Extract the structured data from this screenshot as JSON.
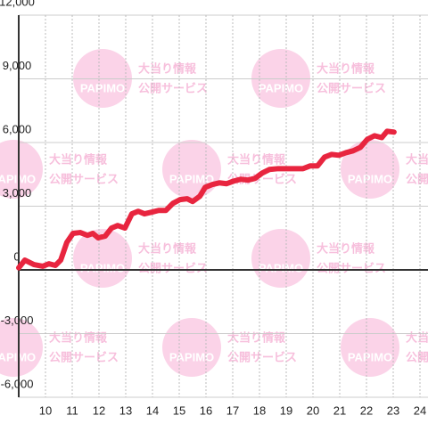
{
  "chart_data": {
    "type": "line",
    "x": [
      9.0,
      9.23,
      9.57,
      9.9,
      10.13,
      10.37,
      10.57,
      10.8,
      11.03,
      11.3,
      11.57,
      11.77,
      11.97,
      12.23,
      12.47,
      12.7,
      12.97,
      13.23,
      13.47,
      13.7,
      13.97,
      14.23,
      14.5,
      14.77,
      15.03,
      15.3,
      15.5,
      15.77,
      15.97,
      16.23,
      16.5,
      16.77,
      17.03,
      17.3,
      17.57,
      17.83,
      18.1,
      18.37,
      18.7,
      19.17,
      19.63,
      19.9,
      20.17,
      20.43,
      20.7,
      20.97,
      21.23,
      21.5,
      21.77,
      22.03,
      22.3,
      22.57,
      22.77,
      23.03
    ],
    "values": [
      100,
      460,
      250,
      170,
      290,
      210,
      460,
      1300,
      1720,
      1760,
      1630,
      1720,
      1510,
      1590,
      1970,
      2090,
      1970,
      2640,
      2760,
      2640,
      2720,
      2800,
      2800,
      3140,
      3310,
      3350,
      3220,
      3470,
      3890,
      4020,
      4100,
      4060,
      4180,
      4270,
      4230,
      4310,
      4560,
      4730,
      4770,
      4770,
      4770,
      4900,
      4900,
      5310,
      5440,
      5400,
      5520,
      5610,
      5770,
      6150,
      6320,
      6230,
      6530,
      6490
    ],
    "color": "#e8253f",
    "xlim": [
      9,
      24.3
    ],
    "xticks": [
      10,
      11,
      12,
      13,
      14,
      15,
      16,
      17,
      18,
      19,
      20,
      21,
      22,
      23,
      24
    ],
    "ylim": [
      -6000,
      12000
    ],
    "yticks": [
      {
        "value": -6000,
        "label": "-6,000"
      },
      {
        "value": -3000,
        "label": "-3,000"
      },
      0,
      {
        "value": 3000,
        "label": "3,000"
      },
      {
        "value": 6000,
        "label": "6,000"
      },
      {
        "value": 9000,
        "label": "9,000"
      },
      {
        "value": 12000,
        "label": "12,000"
      }
    ],
    "grid": true
  },
  "watermark": {
    "line1": "大当り情報",
    "line2": "公開サービス",
    "logo": "PAPIMO"
  }
}
